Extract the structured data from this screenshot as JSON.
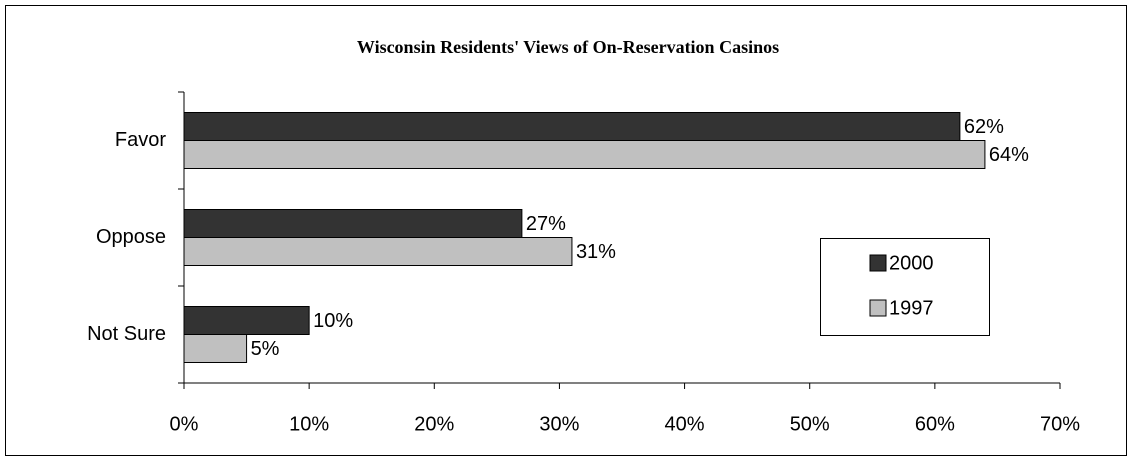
{
  "chart_data": {
    "type": "bar",
    "orientation": "horizontal",
    "title": "Wisconsin Residents' Views of On-Reservation Casinos",
    "categories": [
      "Favor",
      "Oppose",
      "Not Sure"
    ],
    "series": [
      {
        "name": "2000",
        "color": "#333333",
        "values": [
          62,
          27,
          10
        ],
        "value_labels": [
          "62%",
          "27%",
          "10%"
        ]
      },
      {
        "name": "1997",
        "color": "#c0c0c0",
        "values": [
          64,
          31,
          5
        ],
        "value_labels": [
          "64%",
          "31%",
          "5%"
        ]
      }
    ],
    "xlim": [
      0,
      70
    ],
    "xticks": [
      {
        "value": 0,
        "label": "0%"
      },
      {
        "value": 10,
        "label": "10%"
      },
      {
        "value": 20,
        "label": "20%"
      },
      {
        "value": 30,
        "label": "30%"
      },
      {
        "value": 40,
        "label": "40%"
      },
      {
        "value": 50,
        "label": "50%"
      },
      {
        "value": 60,
        "label": "60%"
      },
      {
        "value": 70,
        "label": "70%"
      }
    ],
    "legend": "right"
  }
}
